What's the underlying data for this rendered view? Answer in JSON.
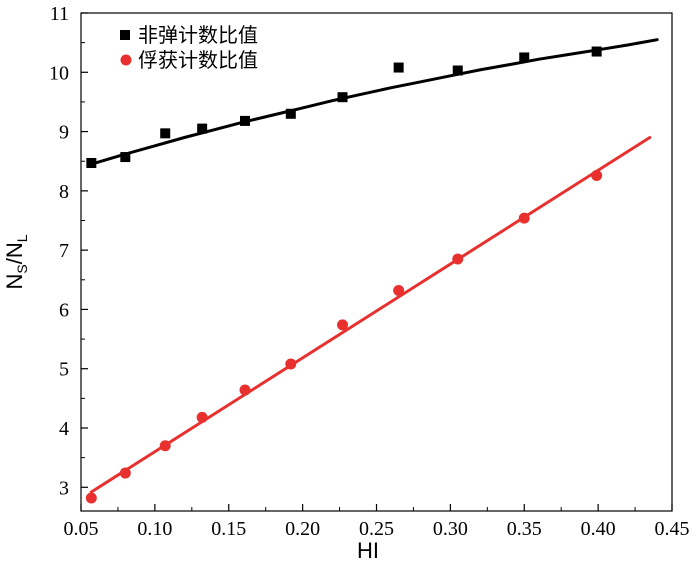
{
  "chart_data": {
    "type": "scatter",
    "xlabel": "HI",
    "ylabel": "N",
    "ylabel_sub1": "S",
    "ylabel_slash": "/N",
    "ylabel_sub2": "L",
    "xlim": [
      0.05,
      0.45
    ],
    "ylim": [
      2.6,
      11
    ],
    "x_ticks": [
      "0.05",
      "0.10",
      "0.15",
      "0.20",
      "0.25",
      "0.30",
      "0.35",
      "0.40",
      "0.45"
    ],
    "y_ticks": [
      "3",
      "4",
      "5",
      "6",
      "7",
      "8",
      "9",
      "10",
      "11"
    ],
    "x_tick_values": [
      0.05,
      0.1,
      0.15,
      0.2,
      0.25,
      0.3,
      0.35,
      0.4,
      0.45
    ],
    "y_tick_values": [
      3,
      4,
      5,
      6,
      7,
      8,
      9,
      10,
      11
    ],
    "legend_position": "top-left",
    "series": [
      {
        "name": "非弹计数比值",
        "marker": "square",
        "color": "#000000",
        "x": [
          0.057,
          0.08,
          0.107,
          0.132,
          0.161,
          0.192,
          0.227,
          0.265,
          0.305,
          0.35,
          0.399
        ],
        "y": [
          8.47,
          8.57,
          8.97,
          9.05,
          9.18,
          9.3,
          9.58,
          10.08,
          10.03,
          10.25,
          10.35
        ],
        "fit": {
          "x": [
            0.057,
            0.08,
            0.1,
            0.12,
            0.14,
            0.16,
            0.18,
            0.2,
            0.22,
            0.24,
            0.26,
            0.28,
            0.3,
            0.32,
            0.34,
            0.36,
            0.38,
            0.4,
            0.42,
            0.44
          ],
          "y": [
            8.45,
            8.62,
            8.76,
            8.9,
            9.03,
            9.16,
            9.28,
            9.4,
            9.52,
            9.63,
            9.74,
            9.84,
            9.94,
            10.04,
            10.13,
            10.22,
            10.3,
            10.38,
            10.46,
            10.55
          ]
        }
      },
      {
        "name": "俘获计数比值",
        "marker": "circle",
        "color": "#e8312f",
        "x": [
          0.057,
          0.08,
          0.107,
          0.132,
          0.161,
          0.192,
          0.227,
          0.265,
          0.305,
          0.35,
          0.399
        ],
        "y": [
          2.82,
          3.24,
          3.7,
          4.18,
          4.64,
          5.08,
          5.74,
          6.32,
          6.85,
          7.54,
          8.26
        ],
        "fit": {
          "x": [
            0.057,
            0.435
          ],
          "y": [
            2.92,
            8.9
          ]
        }
      }
    ]
  }
}
